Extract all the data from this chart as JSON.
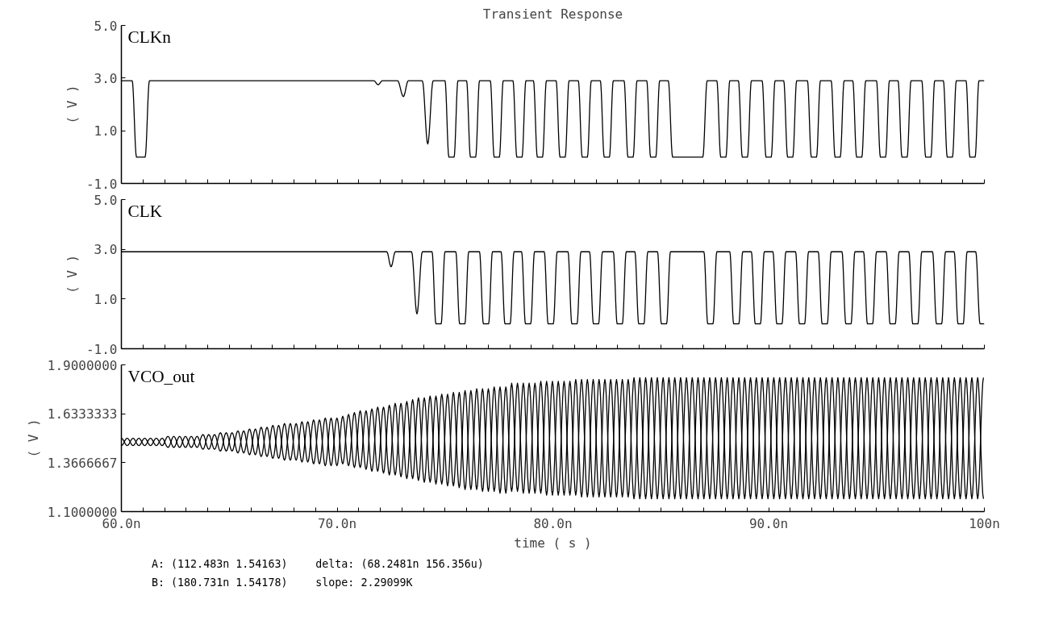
{
  "chart_data": [
    {
      "type": "line",
      "title": "Transient Response",
      "ylabel": "( V )",
      "grid": false,
      "tick_labels": "y",
      "xlim": [
        60,
        100
      ],
      "ylim": [
        -1,
        5
      ],
      "xticks": [
        {
          "value": 60,
          "label": null
        },
        {
          "value": 61,
          "label": null
        },
        {
          "value": 62,
          "label": null
        },
        {
          "value": 63,
          "label": null
        },
        {
          "value": 64,
          "label": null
        },
        {
          "value": 65,
          "label": null
        },
        {
          "value": 66,
          "label": null
        },
        {
          "value": 67,
          "label": null
        },
        {
          "value": 68,
          "label": null
        },
        {
          "value": 69,
          "label": null
        },
        {
          "value": 70,
          "label": null
        },
        {
          "value": 71,
          "label": null
        },
        {
          "value": 72,
          "label": null
        },
        {
          "value": 73,
          "label": null
        },
        {
          "value": 74,
          "label": null
        },
        {
          "value": 75,
          "label": null
        },
        {
          "value": 76,
          "label": null
        },
        {
          "value": 77,
          "label": null
        },
        {
          "value": 78,
          "label": null
        },
        {
          "value": 79,
          "label": null
        },
        {
          "value": 80,
          "label": null
        },
        {
          "value": 81,
          "label": null
        },
        {
          "value": 82,
          "label": null
        },
        {
          "value": 83,
          "label": null
        },
        {
          "value": 84,
          "label": null
        },
        {
          "value": 85,
          "label": null
        },
        {
          "value": 86,
          "label": null
        },
        {
          "value": 87,
          "label": null
        },
        {
          "value": 88,
          "label": null
        },
        {
          "value": 89,
          "label": null
        },
        {
          "value": 90,
          "label": null
        },
        {
          "value": 91,
          "label": null
        },
        {
          "value": 92,
          "label": null
        },
        {
          "value": 93,
          "label": null
        },
        {
          "value": 94,
          "label": null
        },
        {
          "value": 95,
          "label": null
        },
        {
          "value": 96,
          "label": null
        },
        {
          "value": 97,
          "label": null
        },
        {
          "value": 98,
          "label": null
        },
        {
          "value": 99,
          "label": null
        },
        {
          "value": 100,
          "label": null
        }
      ],
      "yticks": [
        {
          "value": -1,
          "label": "-1.0"
        },
        {
          "value": 1,
          "label": "1.0"
        },
        {
          "value": 3,
          "label": "3.0"
        },
        {
          "value": 5,
          "label": "5.0"
        }
      ],
      "x": [
        60,
        60.5,
        60.7,
        61.1,
        61.3,
        71.7,
        71.9,
        72.1,
        72.8,
        73.07,
        73.3,
        73.95,
        74.2,
        74.45,
        75.0,
        75.18,
        75.42,
        75.6,
        76.0,
        76.18,
        76.42,
        76.6,
        77.1,
        77.28,
        77.52,
        77.7,
        78.15,
        78.33,
        78.57,
        78.75,
        79.1,
        79.28,
        79.52,
        79.7,
        80.15,
        80.33,
        80.57,
        80.75,
        81.18,
        81.36,
        81.6,
        81.78,
        82.2,
        82.38,
        82.62,
        82.8,
        83.3,
        83.48,
        83.72,
        83.9,
        84.35,
        84.53,
        84.77,
        84.95,
        85.35,
        85.55,
        86.95,
        87.15,
        87.6,
        87.78,
        88.02,
        88.2,
        88.6,
        88.78,
        89.02,
        89.2,
        89.7,
        89.88,
        90.12,
        90.3,
        90.7,
        90.88,
        91.12,
        91.3,
        91.8,
        91.98,
        92.22,
        92.4,
        92.9,
        93.08,
        93.32,
        93.5,
        93.9,
        94.08,
        94.32,
        94.5,
        95.0,
        95.18,
        95.42,
        95.6,
        96.0,
        96.18,
        96.42,
        96.6,
        97.1,
        97.28,
        97.52,
        97.7,
        98.1,
        98.28,
        98.52,
        98.7,
        99.15,
        99.33,
        99.57,
        99.75,
        100
      ],
      "series": [
        {
          "name": "CLKn",
          "color": "#000000",
          "values": [
            2.9,
            2.9,
            0,
            0,
            2.9,
            2.9,
            2.75,
            2.9,
            2.9,
            2.3,
            2.9,
            2.9,
            0.5,
            2.9,
            2.9,
            0,
            0,
            2.9,
            2.9,
            0,
            0,
            2.9,
            2.9,
            0,
            0,
            2.9,
            2.9,
            0,
            0,
            2.9,
            2.9,
            0,
            0,
            2.9,
            2.9,
            0,
            0,
            2.9,
            2.9,
            0,
            0,
            2.9,
            2.9,
            0,
            0,
            2.9,
            2.9,
            0,
            0,
            2.9,
            2.9,
            0,
            0,
            2.9,
            2.9,
            0,
            0,
            2.9,
            2.9,
            0,
            0,
            2.9,
            2.9,
            0,
            0,
            2.9,
            2.9,
            0,
            0,
            2.9,
            2.9,
            0,
            0,
            2.9,
            2.9,
            0,
            0,
            2.9,
            2.9,
            0,
            0,
            2.9,
            2.9,
            0,
            0,
            2.9,
            2.9,
            0,
            0,
            2.9,
            2.9,
            0,
            0,
            2.9,
            2.9,
            0,
            0,
            2.9,
            2.9,
            0,
            0,
            2.9,
            2.9,
            0,
            0,
            2.9,
            2.9
          ]
        }
      ]
    },
    {
      "type": "line",
      "ylabel": "( V )",
      "grid": false,
      "tick_labels": "y",
      "xlim": [
        60,
        100
      ],
      "ylim": [
        -1,
        5
      ],
      "xticks": [
        {
          "value": 60,
          "label": null
        },
        {
          "value": 61,
          "label": null
        },
        {
          "value": 62,
          "label": null
        },
        {
          "value": 63,
          "label": null
        },
        {
          "value": 64,
          "label": null
        },
        {
          "value": 65,
          "label": null
        },
        {
          "value": 66,
          "label": null
        },
        {
          "value": 67,
          "label": null
        },
        {
          "value": 68,
          "label": null
        },
        {
          "value": 69,
          "label": null
        },
        {
          "value": 70,
          "label": null
        },
        {
          "value": 71,
          "label": null
        },
        {
          "value": 72,
          "label": null
        },
        {
          "value": 73,
          "label": null
        },
        {
          "value": 74,
          "label": null
        },
        {
          "value": 75,
          "label": null
        },
        {
          "value": 76,
          "label": null
        },
        {
          "value": 77,
          "label": null
        },
        {
          "value": 78,
          "label": null
        },
        {
          "value": 79,
          "label": null
        },
        {
          "value": 80,
          "label": null
        },
        {
          "value": 81,
          "label": null
        },
        {
          "value": 82,
          "label": null
        },
        {
          "value": 83,
          "label": null
        },
        {
          "value": 84,
          "label": null
        },
        {
          "value": 85,
          "label": null
        },
        {
          "value": 86,
          "label": null
        },
        {
          "value": 87,
          "label": null
        },
        {
          "value": 88,
          "label": null
        },
        {
          "value": 89,
          "label": null
        },
        {
          "value": 90,
          "label": null
        },
        {
          "value": 91,
          "label": null
        },
        {
          "value": 92,
          "label": null
        },
        {
          "value": 93,
          "label": null
        },
        {
          "value": 94,
          "label": null
        },
        {
          "value": 95,
          "label": null
        },
        {
          "value": 96,
          "label": null
        },
        {
          "value": 97,
          "label": null
        },
        {
          "value": 98,
          "label": null
        },
        {
          "value": 99,
          "label": null
        },
        {
          "value": 100,
          "label": null
        }
      ],
      "yticks": [
        {
          "value": -1,
          "label": "-1.0"
        },
        {
          "value": 1,
          "label": "1.0"
        },
        {
          "value": 3,
          "label": "3.0"
        },
        {
          "value": 5,
          "label": "5.0"
        }
      ],
      "x": [
        60,
        72.3,
        72.5,
        72.7,
        73.45,
        73.7,
        73.95,
        74.4,
        74.58,
        74.82,
        75.0,
        75.5,
        75.68,
        75.92,
        76.1,
        76.6,
        76.78,
        77.02,
        77.2,
        77.6,
        77.78,
        78.02,
        78.2,
        78.55,
        78.73,
        78.97,
        79.15,
        79.6,
        79.78,
        80.02,
        80.2,
        80.7,
        80.88,
        81.12,
        81.3,
        81.7,
        81.88,
        82.12,
        82.3,
        82.8,
        82.98,
        83.22,
        83.4,
        83.8,
        83.98,
        84.22,
        84.4,
        84.85,
        85.03,
        85.27,
        85.45,
        87.0,
        87.18,
        87.42,
        87.6,
        88.2,
        88.38,
        88.62,
        88.8,
        89.2,
        89.38,
        89.62,
        89.8,
        90.2,
        90.38,
        90.62,
        90.8,
        91.25,
        91.43,
        91.67,
        91.85,
        92.3,
        92.48,
        92.72,
        92.9,
        93.4,
        93.58,
        93.82,
        94.0,
        94.4,
        94.58,
        94.82,
        95.0,
        95.45,
        95.63,
        95.87,
        96.05,
        96.5,
        96.68,
        96.92,
        97.1,
        97.6,
        97.78,
        98.02,
        98.2,
        98.6,
        98.78,
        99.02,
        99.2,
        99.6,
        99.8,
        100
      ],
      "series": [
        {
          "name": "CLK",
          "color": "#000000",
          "values": [
            2.9,
            2.9,
            2.3,
            2.9,
            2.9,
            0.4,
            2.9,
            2.9,
            0,
            0,
            2.9,
            2.9,
            0,
            0,
            2.9,
            2.9,
            0,
            0,
            2.9,
            2.9,
            0,
            0,
            2.9,
            2.9,
            0,
            0,
            2.9,
            2.9,
            0,
            0,
            2.9,
            2.9,
            0,
            0,
            2.9,
            2.9,
            0,
            0,
            2.9,
            2.9,
            0,
            0,
            2.9,
            2.9,
            0,
            0,
            2.9,
            2.9,
            0,
            0,
            2.9,
            2.9,
            0,
            0,
            2.9,
            2.9,
            0,
            0,
            2.9,
            2.9,
            0,
            0,
            2.9,
            2.9,
            0,
            0,
            2.9,
            2.9,
            0,
            0,
            2.9,
            2.9,
            0,
            0,
            2.9,
            2.9,
            0,
            0,
            2.9,
            2.9,
            0,
            0,
            2.9,
            2.9,
            0,
            0,
            2.9,
            2.9,
            0,
            0,
            2.9,
            2.9,
            0,
            0,
            2.9,
            2.9,
            0,
            0,
            2.9,
            2.9,
            0,
            0
          ]
        }
      ]
    },
    {
      "type": "line",
      "ylabel": "( V )",
      "xlabel": "time ( s )",
      "grid": false,
      "xlim": [
        60,
        100
      ],
      "ylim": [
        1.1,
        1.9
      ],
      "xticks": [
        {
          "value": 60,
          "label": "60.0n"
        },
        {
          "value": 61,
          "label": null
        },
        {
          "value": 62,
          "label": null
        },
        {
          "value": 63,
          "label": null
        },
        {
          "value": 64,
          "label": null
        },
        {
          "value": 65,
          "label": null
        },
        {
          "value": 66,
          "label": null
        },
        {
          "value": 67,
          "label": null
        },
        {
          "value": 68,
          "label": null
        },
        {
          "value": 69,
          "label": null
        },
        {
          "value": 70,
          "label": "70.0n"
        },
        {
          "value": 71,
          "label": null
        },
        {
          "value": 72,
          "label": null
        },
        {
          "value": 73,
          "label": null
        },
        {
          "value": 74,
          "label": null
        },
        {
          "value": 75,
          "label": null
        },
        {
          "value": 76,
          "label": null
        },
        {
          "value": 77,
          "label": null
        },
        {
          "value": 78,
          "label": null
        },
        {
          "value": 79,
          "label": null
        },
        {
          "value": 80,
          "label": "80.0n"
        },
        {
          "value": 81,
          "label": null
        },
        {
          "value": 82,
          "label": null
        },
        {
          "value": 83,
          "label": null
        },
        {
          "value": 84,
          "label": null
        },
        {
          "value": 85,
          "label": null
        },
        {
          "value": 86,
          "label": null
        },
        {
          "value": 87,
          "label": null
        },
        {
          "value": 88,
          "label": null
        },
        {
          "value": 89,
          "label": null
        },
        {
          "value": 90,
          "label": "90.0n"
        },
        {
          "value": 91,
          "label": null
        },
        {
          "value": 92,
          "label": null
        },
        {
          "value": 93,
          "label": null
        },
        {
          "value": 94,
          "label": null
        },
        {
          "value": 95,
          "label": null
        },
        {
          "value": 96,
          "label": null
        },
        {
          "value": 97,
          "label": null
        },
        {
          "value": 98,
          "label": null
        },
        {
          "value": 99,
          "label": null
        },
        {
          "value": 100,
          "label": "100n"
        }
      ],
      "yticks": [
        {
          "value": 1.1,
          "label": "1.1000000"
        },
        {
          "value": 1.3666667,
          "label": "1.3666667"
        },
        {
          "value": 1.6333333,
          "label": "1.6333333"
        },
        {
          "value": 1.9,
          "label": "1.9000000"
        }
      ],
      "x": [
        60.0,
        60.27,
        60.54,
        60.81,
        61.08,
        61.35,
        61.62,
        61.89,
        62.16,
        62.43,
        62.7,
        62.97,
        63.24,
        63.51,
        63.78,
        64.05,
        64.32,
        64.59,
        64.86,
        65.13,
        65.4,
        65.67,
        65.94,
        66.21,
        66.48,
        66.75,
        67.02,
        67.29,
        67.56,
        67.83,
        68.1,
        68.37,
        68.64,
        68.91,
        69.18,
        69.45,
        69.72,
        69.99,
        70.26,
        70.53,
        70.8,
        71.07,
        71.34,
        71.61,
        71.88,
        72.15,
        72.42,
        72.69,
        72.96,
        73.23,
        73.5,
        73.77,
        74.04,
        74.31,
        74.58,
        74.85,
        75.12,
        75.39,
        75.66,
        75.93,
        76.2,
        76.47,
        76.74,
        77.01,
        77.28,
        77.55,
        77.82,
        78.09,
        78.36,
        78.63,
        78.9,
        79.17,
        79.44,
        79.71,
        79.98,
        80.25,
        80.52,
        80.79,
        81.06,
        81.33,
        81.6,
        81.87,
        82.14,
        82.41,
        82.68,
        82.95,
        83.22,
        83.49,
        83.76,
        84.03,
        84.3,
        84.57,
        84.84,
        85.11,
        85.38,
        85.65,
        85.92,
        86.19,
        86.46,
        86.73,
        87.0,
        87.27,
        87.54,
        87.81,
        88.08,
        88.35,
        88.62,
        88.89,
        89.16,
        89.43,
        89.7,
        89.97,
        90.24,
        90.51,
        90.78,
        91.05,
        91.32,
        91.59,
        91.86,
        92.13,
        92.4,
        92.67,
        92.94,
        93.21,
        93.48,
        93.75,
        94.02,
        94.29,
        94.56,
        94.83,
        95.1,
        95.37,
        95.64,
        95.91,
        96.18,
        96.45,
        96.72,
        96.99,
        97.26,
        97.53,
        97.8,
        98.07,
        98.34,
        98.61,
        98.88,
        99.15,
        99.42,
        99.69,
        99.96
      ],
      "series": [
        {
          "name": "VCO_out",
          "color": "#000000",
          "values": [
            1.5,
            1.46,
            1.5,
            1.46,
            1.5,
            1.46,
            1.5,
            1.46,
            1.51,
            1.45,
            1.51,
            1.45,
            1.51,
            1.45,
            1.52,
            1.44,
            1.52,
            1.43,
            1.53,
            1.43,
            1.54,
            1.42,
            1.55,
            1.41,
            1.56,
            1.4,
            1.57,
            1.39,
            1.58,
            1.38,
            1.58,
            1.37,
            1.59,
            1.36,
            1.6,
            1.35,
            1.61,
            1.35,
            1.62,
            1.35,
            1.64,
            1.34,
            1.65,
            1.32,
            1.67,
            1.31,
            1.68,
            1.3,
            1.69,
            1.28,
            1.71,
            1.27,
            1.72,
            1.26,
            1.73,
            1.25,
            1.74,
            1.24,
            1.75,
            1.22,
            1.76,
            1.22,
            1.77,
            1.21,
            1.78,
            1.2,
            1.78,
            1.21,
            1.8,
            1.2,
            1.8,
            1.2,
            1.81,
            1.19,
            1.81,
            1.19,
            1.81,
            1.19,
            1.82,
            1.18,
            1.82,
            1.18,
            1.82,
            1.18,
            1.82,
            1.18,
            1.82,
            1.18,
            1.83,
            1.17,
            1.83,
            1.17,
            1.83,
            1.17,
            1.83,
            1.17,
            1.83,
            1.17,
            1.83,
            1.17,
            1.83,
            1.17,
            1.83,
            1.17,
            1.83,
            1.17,
            1.83,
            1.17,
            1.83,
            1.17,
            1.83,
            1.17,
            1.83,
            1.17,
            1.83,
            1.17,
            1.83,
            1.17,
            1.83,
            1.17,
            1.83,
            1.17,
            1.83,
            1.17,
            1.83,
            1.17,
            1.83,
            1.17,
            1.83,
            1.17,
            1.83,
            1.17,
            1.83,
            1.17,
            1.83,
            1.17,
            1.83,
            1.17,
            1.83,
            1.17,
            1.83,
            1.17,
            1.83,
            1.17,
            1.83,
            1.17,
            1.83,
            1.17,
            1.83
          ]
        },
        {
          "color": "#000000",
          "values": [
            1.46,
            1.5,
            1.46,
            1.5,
            1.46,
            1.5,
            1.46,
            1.5,
            1.45,
            1.51,
            1.45,
            1.51,
            1.45,
            1.51,
            1.44,
            1.52,
            1.44,
            1.53,
            1.43,
            1.53,
            1.42,
            1.54,
            1.41,
            1.55,
            1.4,
            1.56,
            1.39,
            1.57,
            1.38,
            1.58,
            1.38,
            1.59,
            1.37,
            1.6,
            1.36,
            1.61,
            1.35,
            1.61,
            1.36,
            1.63,
            1.34,
            1.65,
            1.33,
            1.66,
            1.32,
            1.67,
            1.3,
            1.69,
            1.29,
            1.7,
            1.28,
            1.72,
            1.26,
            1.73,
            1.25,
            1.74,
            1.24,
            1.75,
            1.23,
            1.76,
            1.22,
            1.77,
            1.21,
            1.77,
            1.21,
            1.78,
            1.2,
            1.8,
            1.21,
            1.8,
            1.2,
            1.8,
            1.2,
            1.81,
            1.19,
            1.81,
            1.19,
            1.81,
            1.19,
            1.82,
            1.18,
            1.82,
            1.18,
            1.82,
            1.18,
            1.82,
            1.18,
            1.82,
            1.17,
            1.83,
            1.17,
            1.83,
            1.17,
            1.83,
            1.17,
            1.83,
            1.17,
            1.83,
            1.17,
            1.83,
            1.17,
            1.83,
            1.17,
            1.83,
            1.17,
            1.83,
            1.17,
            1.83,
            1.17,
            1.83,
            1.17,
            1.83,
            1.17,
            1.83,
            1.17,
            1.83,
            1.17,
            1.83,
            1.17,
            1.83,
            1.17,
            1.83,
            1.17,
            1.83,
            1.17,
            1.83,
            1.17,
            1.83,
            1.17,
            1.83,
            1.17,
            1.83,
            1.17,
            1.83,
            1.17,
            1.83,
            1.17,
            1.83,
            1.17,
            1.83,
            1.17,
            1.83,
            1.17,
            1.83,
            1.17,
            1.83,
            1.17,
            1.83,
            1.17
          ]
        }
      ],
      "annotations": [
        "A: (112.483n 1.54163)",
        "B: (180.731n 1.54178)",
        "delta: (68.2481n 156.356u)",
        "slope: 2.29099K"
      ]
    }
  ]
}
